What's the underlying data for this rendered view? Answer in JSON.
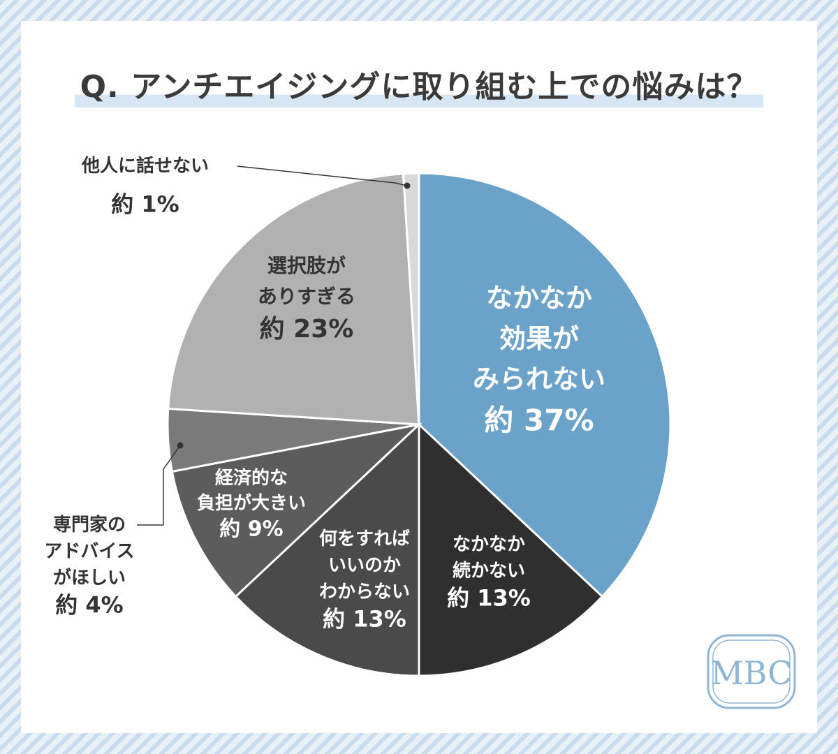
{
  "title": "Q. アンチエイジングに取り組む上での悩みは？",
  "logo": {
    "text": "MBC",
    "color": "#8fb5d4"
  },
  "chart_data": {
    "type": "pie",
    "title": "Q. アンチエイジングに取り組む上での悩みは？",
    "slices": [
      {
        "lines": [
          "なかなか",
          "効果が",
          "みられない"
        ],
        "value_label": "約 37%",
        "value": 37,
        "color": "#6aa2ca",
        "text_color": "#ffffff"
      },
      {
        "lines": [
          "なかなか",
          "続かない"
        ],
        "value_label": "約 13%",
        "value": 13,
        "color": "#2f2f2f",
        "text_color": "#ffffff"
      },
      {
        "lines": [
          "何をすれば",
          "いいのか",
          "わからない"
        ],
        "value_label": "約 13%",
        "value": 13,
        "color": "#4a4a4a",
        "text_color": "#ffffff"
      },
      {
        "lines": [
          "経済的な",
          "負担が大きい"
        ],
        "value_label": "約 9%",
        "value": 9,
        "color": "#5c5c5c",
        "text_color": "#ffffff"
      },
      {
        "lines": [
          "専門家の",
          "アドバイス",
          "がほしい"
        ],
        "value_label": "約 4%",
        "value": 4,
        "color": "#7a7a7a",
        "text_color": "#333333"
      },
      {
        "lines": [
          "選択肢が",
          "ありすぎる"
        ],
        "value_label": "約 23%",
        "value": 23,
        "color": "#b1b1b1",
        "text_color": "#333333"
      },
      {
        "lines": [
          "他人に話せない"
        ],
        "value_label": "約 1%",
        "value": 1,
        "color": "#d9d9d9",
        "text_color": "#333333"
      }
    ]
  }
}
